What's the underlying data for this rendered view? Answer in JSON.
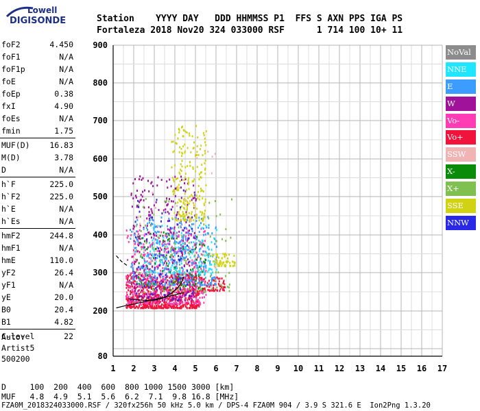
{
  "logo": {
    "line1": "Lowell",
    "line2": "DIGISONDE"
  },
  "header": {
    "line1": "Station    YYYY DAY   DDD HHMMSS P1  FFS S AXN PPS IGA PS",
    "line2": "Fortaleza 2018 Nov20 324 033000 RSF      1 714 100 10+ 11"
  },
  "params": {
    "g1": [
      [
        "foF2",
        "4.450"
      ],
      [
        "foF1",
        "N/A"
      ],
      [
        "foF1p",
        "N/A"
      ],
      [
        "foE",
        "N/A"
      ],
      [
        "foEp",
        "0.38"
      ],
      [
        "fxI",
        "4.90"
      ],
      [
        "foEs",
        "N/A"
      ],
      [
        "fmin",
        "1.75"
      ]
    ],
    "g2": [
      [
        "MUF(D)",
        "16.83"
      ],
      [
        "M(D)",
        "3.78"
      ],
      [
        "D",
        "N/A"
      ]
    ],
    "g3": [
      [
        "h`F",
        "225.0"
      ],
      [
        "h`F2",
        "225.0"
      ],
      [
        "h`E",
        "N/A"
      ],
      [
        "h`Es",
        "N/A"
      ]
    ],
    "g4": [
      [
        "hmF2",
        "244.8"
      ],
      [
        "hmF1",
        "N/A"
      ],
      [
        "hmE",
        "110.0"
      ],
      [
        "yF2",
        "26.4"
      ],
      [
        "yF1",
        "N/A"
      ],
      [
        "yE",
        "20.0"
      ],
      [
        "B0",
        "20.4"
      ],
      [
        "B1",
        "4.82"
      ]
    ],
    "g5": [
      [
        "C-level",
        "22"
      ]
    ]
  },
  "auto": {
    "line1": "Auto:",
    "line2": "Artist5",
    "line3": "500200"
  },
  "legend": [
    {
      "label": "NoVal",
      "color": "#8c8c8c"
    },
    {
      "label": "NNE",
      "color": "#1ee6ff"
    },
    {
      "label": "E",
      "color": "#3c9cff"
    },
    {
      "label": "W",
      "color": "#a0129a"
    },
    {
      "label": "Vo-",
      "color": "#ff3cb4"
    },
    {
      "label": "Vo+",
      "color": "#f0143c"
    },
    {
      "label": "SSW",
      "color": "#f0b4b4"
    },
    {
      "label": "X-",
      "color": "#0a8c0a"
    },
    {
      "label": "X+",
      "color": "#80c050"
    },
    {
      "label": "SSE",
      "color": "#d2d214"
    },
    {
      "label": "NNW",
      "color": "#2828e6"
    }
  ],
  "footer": {
    "d_row": "D     100  200  400  600  800 1000 1500 3000 [km]",
    "muf_row": "MUF   4.8  4.9  5.1  5.6  6.2  7.1  9.8 16.8 [MHz]",
    "file_row": "FZA0M_2018324033000.RSF / 320fx256h 50 kHz 5.0 km / DPS-4 FZA0M 904 / 3.9 S 321.6 E  Ion2Png 1.3.20"
  },
  "chart_data": {
    "type": "scatter",
    "xlim": [
      1,
      17
    ],
    "ylim": [
      80,
      900
    ],
    "x_ticks": [
      1,
      2,
      3,
      4,
      5,
      6,
      7,
      8,
      9,
      10,
      11,
      12,
      13,
      14,
      15,
      16,
      17
    ],
    "y_ticks": [
      80,
      200,
      300,
      400,
      500,
      600,
      700,
      800,
      900
    ],
    "grid": true,
    "legend_position": "right",
    "profile_curve": {
      "x": [
        1.15,
        1.6,
        2.0,
        2.5,
        3.0,
        3.5,
        4.0,
        4.45
      ],
      "y": [
        208,
        214,
        218,
        224,
        230,
        236,
        242,
        248
      ]
    },
    "ordinary_trace": {
      "x": [
        1.75,
        2.0,
        2.5,
        3.0,
        3.5,
        3.8,
        4.1,
        4.3,
        4.45
      ],
      "y": [
        232,
        230,
        228,
        228,
        235,
        245,
        258,
        272,
        290
      ]
    },
    "dashed_trace": {
      "x": [
        1.15,
        1.4,
        1.7
      ],
      "y": [
        345,
        330,
        318
      ]
    },
    "clusters": [
      {
        "color": "#f0143c",
        "x": [
          1.6,
          5.2
        ],
        "y": [
          210,
          300
        ],
        "n": 700
      },
      {
        "color": "#f0143c",
        "x": [
          5.2,
          6.4
        ],
        "y": [
          255,
          290
        ],
        "n": 80
      },
      {
        "color": "#ff3cb4",
        "x": [
          1.6,
          5.5
        ],
        "y": [
          220,
          420
        ],
        "n": 450
      },
      {
        "color": "#a0129a",
        "x": [
          1.8,
          5.0
        ],
        "y": [
          230,
          560
        ],
        "n": 350
      },
      {
        "color": "#3c9cff",
        "x": [
          1.8,
          6.0
        ],
        "y": [
          270,
          450
        ],
        "n": 350
      },
      {
        "color": "#1ee6ff",
        "x": [
          2.5,
          6.0
        ],
        "y": [
          300,
          430
        ],
        "n": 150
      },
      {
        "color": "#0a8c0a",
        "x": [
          2.2,
          5.5
        ],
        "y": [
          260,
          420
        ],
        "n": 90
      },
      {
        "color": "#80c050",
        "x": [
          2.0,
          6.8
        ],
        "y": [
          250,
          500
        ],
        "n": 110
      },
      {
        "color": "#d2d214",
        "x": [
          3.8,
          5.5
        ],
        "y": [
          440,
          690
        ],
        "n": 220
      },
      {
        "color": "#d2d214",
        "x": [
          5.8,
          6.9
        ],
        "y": [
          320,
          355
        ],
        "n": 60
      },
      {
        "color": "#2828e6",
        "x": [
          2.0,
          5.0
        ],
        "y": [
          230,
          520
        ],
        "n": 80
      },
      {
        "color": "#f0b4b4",
        "x": [
          2.0,
          6.0
        ],
        "y": [
          220,
          640
        ],
        "n": 40
      }
    ]
  }
}
